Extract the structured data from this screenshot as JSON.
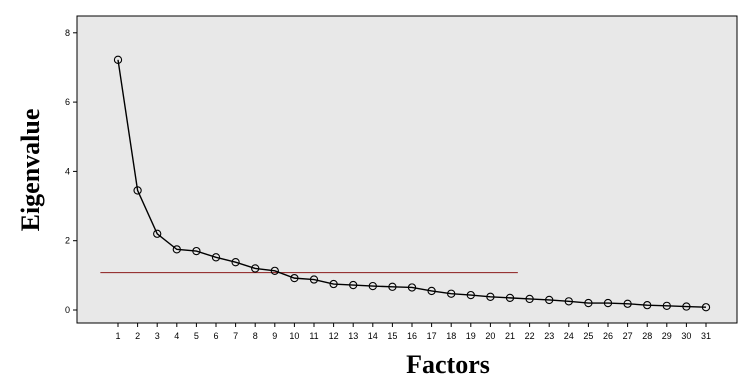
{
  "chart_data": {
    "type": "line",
    "title": "",
    "xlabel": "Factors",
    "ylabel": "Eigenvalue",
    "x": [
      1,
      2,
      3,
      4,
      5,
      6,
      7,
      8,
      9,
      10,
      11,
      12,
      13,
      14,
      15,
      16,
      17,
      18,
      19,
      20,
      21,
      22,
      23,
      24,
      25,
      26,
      27,
      28,
      29,
      30,
      31
    ],
    "series": [
      {
        "values": [
          7.22,
          3.45,
          2.2,
          1.75,
          1.7,
          1.52,
          1.38,
          1.2,
          1.13,
          0.92,
          0.88,
          0.75,
          0.72,
          0.69,
          0.67,
          0.65,
          0.55,
          0.47,
          0.43,
          0.38,
          0.35,
          0.32,
          0.29,
          0.25,
          0.2,
          0.2,
          0.18,
          0.14,
          0.12,
          0.1,
          0.08
        ]
      }
    ],
    "yticks": [
      0,
      2,
      4,
      6,
      8
    ],
    "ylim": [
      -0.3,
      8.2
    ],
    "reference_line": {
      "y": 1.08,
      "x_start": 0.1,
      "x_end": 21.4
    },
    "grid": false,
    "colors": {
      "plot_background": "#e8e8e8",
      "series_line": "#000000",
      "reference_line": "#8b1a1a"
    }
  }
}
